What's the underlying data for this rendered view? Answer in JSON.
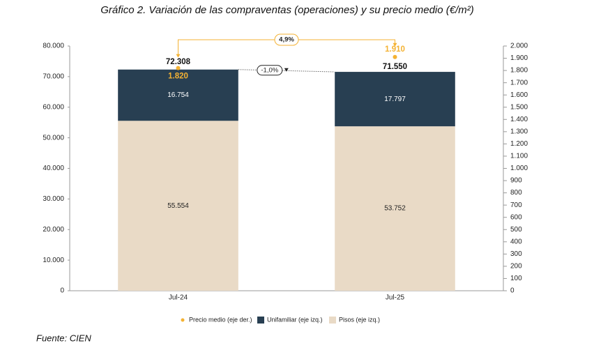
{
  "chart_data": {
    "type": "bar",
    "title": "Gráfico 2. Variación de las compraventas (operaciones) y su precio medio (€/m²)",
    "categories": [
      "Jul-24",
      "Jul-25"
    ],
    "series": [
      {
        "name": "Precio medio (eje der.)",
        "color": "#f4b233",
        "axis": "y2",
        "values": [
          1820,
          1910
        ],
        "value_labels": [
          "1.820",
          "1.910"
        ]
      },
      {
        "name": "Unifamiliar (eje izq.)",
        "color": "#283f52",
        "values": [
          16754,
          17797
        ],
        "value_labels": [
          "16.754",
          "17.797"
        ]
      },
      {
        "name": "Pisos (eje izq.)",
        "color": "#e9dac6",
        "values": [
          55554,
          53752
        ],
        "value_labels": [
          "55.554",
          "53.752"
        ]
      }
    ],
    "totals": {
      "values": [
        72308,
        71550
      ],
      "value_labels": [
        "72.308",
        "71.550"
      ]
    },
    "annotations": [
      "4,9%",
      "-1,0%"
    ],
    "ylim": [
      0,
      80000
    ],
    "yticks": [
      0,
      {
        "value": 10000,
        "label": "10.000"
      },
      {
        "value": 20000,
        "label": "20.000"
      },
      {
        "value": 30000,
        "label": "30.000"
      },
      {
        "value": 40000,
        "label": "40.000"
      },
      {
        "value": 50000,
        "label": "50.000"
      },
      {
        "value": 60000,
        "label": "60.000"
      },
      {
        "value": 70000,
        "label": "70.000"
      },
      {
        "value": 80000,
        "label": "80.000"
      }
    ],
    "y2lim": [
      0,
      2000
    ],
    "y2ticks": [
      0,
      100,
      200,
      300,
      400,
      500,
      600,
      700,
      800,
      900,
      {
        "value": 1000,
        "label": "1.000"
      },
      {
        "value": 1100,
        "label": "1.100"
      },
      {
        "value": 1200,
        "label": "1.200"
      },
      {
        "value": 1300,
        "label": "1.300"
      },
      {
        "value": 1400,
        "label": "1.400"
      },
      {
        "value": 1500,
        "label": "1.500"
      },
      {
        "value": 1600,
        "label": "1.600"
      },
      {
        "value": 1700,
        "label": "1.700"
      },
      {
        "value": 1800,
        "label": "1.800"
      },
      {
        "value": 1900,
        "label": "1.900"
      },
      {
        "value": 2000,
        "label": "2.000"
      }
    ],
    "grid": false,
    "source": "Fuente: CIEN"
  }
}
